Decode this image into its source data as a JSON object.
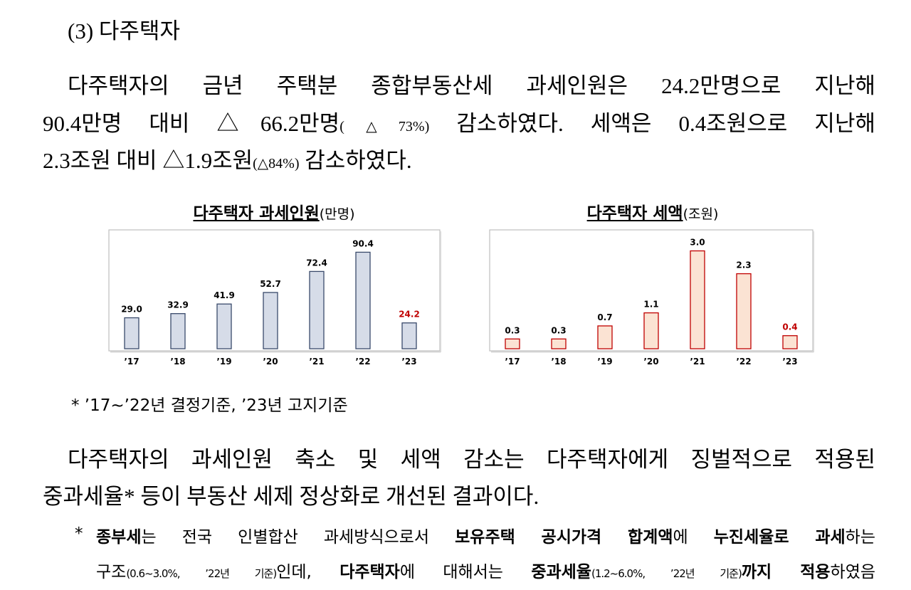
{
  "heading": "(3) 다주택자",
  "paragraph_1": [
    [
      {
        "text": "다주택자의 금년 주택분 종합부동산세 과세인원은 24.2만명으로 지난해"
      }
    ],
    [
      {
        "text": "90.4만명 대비 △66.2만명"
      },
      {
        "text": "(△73%)",
        "style": "small"
      },
      {
        "text": " 감소하였다. 세액은 0.4조원으로 지난해"
      }
    ],
    [
      {
        "text": "2.3조원 대비 △1.9조원"
      },
      {
        "text": "(△84%)",
        "style": "small"
      },
      {
        "text": " 감소하였다."
      }
    ]
  ],
  "chart_note": "* ’17~’22년 결정기준, ’23년 고지기준",
  "paragraph_2": [
    [
      {
        "text": "다주택자의 과세인원 축소 및 세액 감소는 다주택자에게 징벌적으로 적용된"
      }
    ],
    [
      {
        "text": "중과세율* 등이 부동산 세제 정상화로 개선된 결과이다."
      }
    ]
  ],
  "footnote_marker": "*",
  "footnote": [
    [
      {
        "text": "종부세",
        "style": "bold"
      },
      {
        "text": "는 전국 인별합산 과세방식으로서 "
      },
      {
        "text": "보유주택 공시가격 합계액",
        "style": "bold"
      },
      {
        "text": "에 "
      },
      {
        "text": "누진세율로 과세",
        "style": "bold"
      },
      {
        "text": "하는"
      }
    ],
    [
      {
        "text": "구조"
      },
      {
        "text": "(0.6~3.0%, ’22년 기준)",
        "style": "small"
      },
      {
        "text": "인데, "
      },
      {
        "text": "다주택자",
        "style": "bold"
      },
      {
        "text": "에 대해서는 "
      },
      {
        "text": "중과세율",
        "style": "bold"
      },
      {
        "text": "(1.2~6.0%, ’22년 기준)",
        "style": "small"
      },
      {
        "text": "까지 적용",
        "style": "bold"
      },
      {
        "text": "하였음"
      }
    ]
  ],
  "chart_data": [
    {
      "type": "bar",
      "title": "다주택자 과세인원",
      "unit": "(만명)",
      "categories": [
        "’17",
        "’18",
        "’19",
        "’20",
        "’21",
        "’22",
        "’23"
      ],
      "values": [
        29.0,
        32.9,
        41.9,
        52.7,
        72.4,
        90.4,
        24.2
      ],
      "value_labels": [
        "29.0",
        "32.9",
        "41.9",
        "52.7",
        "72.4",
        "90.4",
        "24.2"
      ],
      "value_label_colors": [
        "#000000",
        "#000000",
        "#000000",
        "#000000",
        "#000000",
        "#000000",
        "#c00000"
      ],
      "color": "#d6dce8",
      "edge_color": "#3a4a6b",
      "ylim": [
        0,
        110
      ]
    },
    {
      "type": "bar",
      "title": "다주택자 세액",
      "unit": "(조원)",
      "categories": [
        "’17",
        "’18",
        "’19",
        "’20",
        "’21",
        "’22",
        "’23"
      ],
      "values": [
        0.3,
        0.3,
        0.7,
        1.1,
        3.0,
        2.3,
        0.4
      ],
      "value_labels": [
        "0.3",
        "0.3",
        "0.7",
        "1.1",
        "3.0",
        "2.3",
        "0.4"
      ],
      "value_label_colors": [
        "#000000",
        "#000000",
        "#000000",
        "#000000",
        "#000000",
        "#000000",
        "#c00000"
      ],
      "color": "#fbe3d3",
      "edge_color": "#c00000",
      "ylim": [
        0,
        3.6
      ]
    }
  ]
}
